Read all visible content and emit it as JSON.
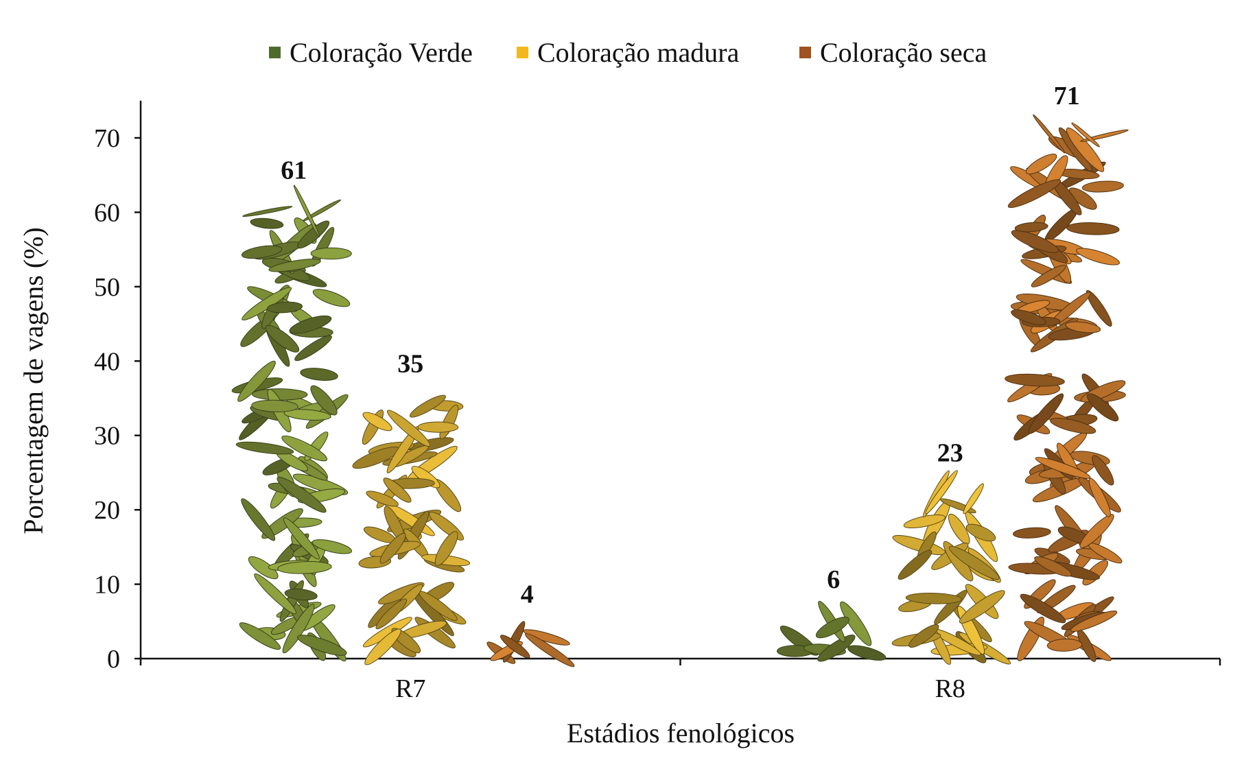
{
  "chart_data": {
    "type": "bar",
    "title": "",
    "xlabel": "Estádios fenológicos",
    "ylabel": "Porcentagem de vagens (%)",
    "categories": [
      "R7",
      "R8"
    ],
    "ylim": [
      0,
      75
    ],
    "yticks": [
      0,
      10,
      20,
      30,
      40,
      50,
      60,
      70
    ],
    "grid": false,
    "legend_position": "top",
    "bar_style": "pictorial stacked pod images",
    "series": [
      {
        "name": "Coloração Verde",
        "color": "#4e6b2d",
        "pod_color": "#7d8f38",
        "values": [
          61,
          6
        ]
      },
      {
        "name": "Coloração madura",
        "color": "#f2b81e",
        "pod_color": "#c9a331",
        "values": [
          35,
          23
        ]
      },
      {
        "name": "Coloração seca",
        "color": "#a0521f",
        "pod_color": "#b56f2a",
        "values": [
          4,
          71
        ]
      }
    ]
  }
}
